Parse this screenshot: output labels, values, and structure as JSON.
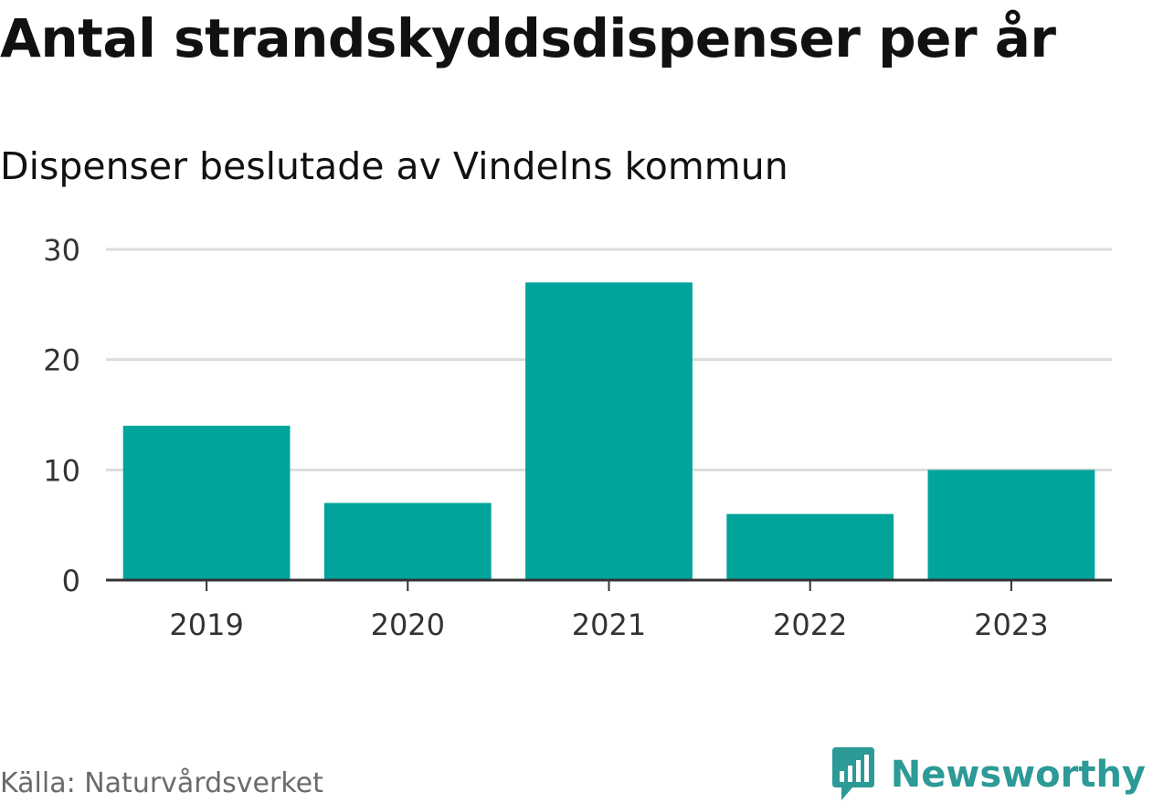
{
  "header": {
    "title": "Antal strandskyddsdispenser per år",
    "subtitle": "Dispenser beslutade av Vindelns kommun"
  },
  "footer": {
    "source": "Källa: Naturvårdsverket",
    "brand": "Newsworthy",
    "brand_icon": "newsworthy-logo-icon"
  },
  "colors": {
    "bar": "#00a49a",
    "grid": "#dcdcdc",
    "axis": "#333333",
    "brand": "#2c9a96"
  },
  "chart_data": {
    "type": "bar",
    "title": "Antal strandskyddsdispenser per år",
    "subtitle": "Dispenser beslutade av Vindelns kommun",
    "categories": [
      "2019",
      "2020",
      "2021",
      "2022",
      "2023"
    ],
    "values": [
      14,
      7,
      27,
      6,
      10
    ],
    "xlabel": "",
    "ylabel": "",
    "ylim": [
      0,
      30
    ],
    "yticks": [
      0,
      10,
      20,
      30
    ],
    "grid": true
  }
}
